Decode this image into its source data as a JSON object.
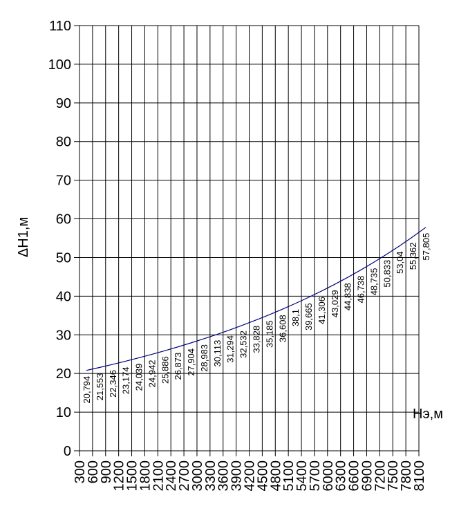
{
  "chart_data": {
    "type": "line",
    "xlabel": "Нэ,м",
    "ylabel": "ΔH1,м",
    "ylim": [
      0,
      110
    ],
    "yticks": [
      0,
      10,
      20,
      30,
      40,
      50,
      60,
      70,
      80,
      90,
      100,
      110
    ],
    "grid": true,
    "line_color": "#000080",
    "x": [
      300,
      600,
      900,
      1200,
      1500,
      1800,
      2100,
      2400,
      2700,
      3000,
      3300,
      3600,
      3900,
      4200,
      4500,
      4800,
      5100,
      5400,
      5700,
      6000,
      6300,
      6600,
      6900,
      7200,
      7500,
      7800,
      8100
    ],
    "series": [
      {
        "values": [
          20.794,
          21.553,
          22.346,
          23.174,
          24.039,
          24.942,
          25.886,
          26.873,
          27.904,
          28.983,
          30.113,
          31.294,
          32.532,
          33.828,
          35.185,
          36.608,
          38.1,
          39.665,
          41.306,
          43.029,
          44.838,
          46.738,
          48.735,
          50.833,
          53.04,
          55.362,
          57.805
        ],
        "labels": [
          "20,794",
          "21,553",
          "22,346",
          "23,174",
          "24,039",
          "24,942",
          "25,886",
          "26,873",
          "27,904",
          "28,983",
          "30,113",
          "31,294",
          "32,532",
          "33,828",
          "35,185",
          "36,608",
          "38,1",
          "39,665",
          "41,306",
          "43,029",
          "44,838",
          "46,738",
          "48,735",
          "50,833",
          "53,04",
          "55,362",
          "57,805"
        ]
      }
    ]
  }
}
